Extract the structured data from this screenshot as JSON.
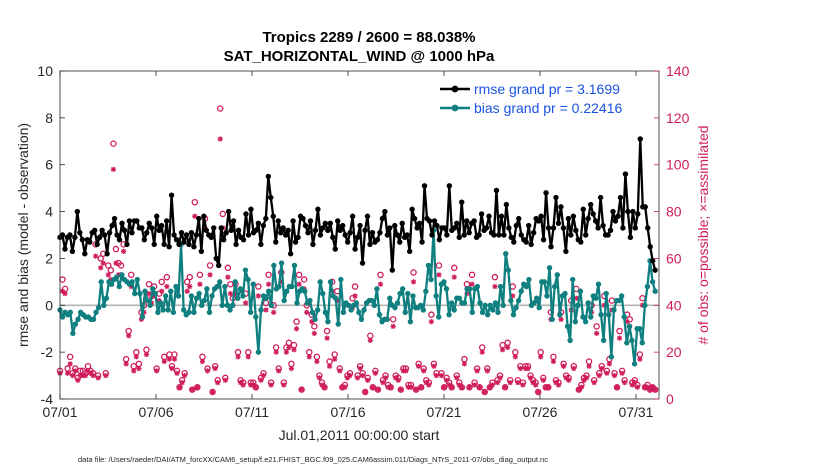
{
  "chart_data": {
    "type": "line",
    "title": "Tropics 2289 / 2600 = 88.038%",
    "subtitle": "SAT_HORIZONTAL_WIND @ 1000 hPa",
    "xlabel": "Jul.01,2011 00:00:00 start",
    "ylabel": "rmse and bias (model - observation)",
    "ylabel_right": "# of obs: o=possible; ×=assimilated",
    "xlim": [
      0,
      31.2
    ],
    "ylim": [
      -4,
      10
    ],
    "ylim_right": [
      0,
      140
    ],
    "x_ticks": [
      0,
      5,
      10,
      15,
      20,
      25,
      30
    ],
    "x_tick_labels": [
      "07/01",
      "07/06",
      "07/11",
      "07/16",
      "07/21",
      "07/26",
      "07/31"
    ],
    "y_ticks": [
      -4,
      -2,
      0,
      2,
      4,
      6,
      8,
      10
    ],
    "y_tick_labels": [
      "-4",
      "-2",
      "0",
      "2",
      "4",
      "6",
      "8",
      "10"
    ],
    "y_ticks_right": [
      0,
      20,
      40,
      60,
      80,
      100,
      120,
      140
    ],
    "y_tick_labels_right": [
      "0",
      "20",
      "40",
      "60",
      "80",
      "100",
      "120",
      "140"
    ],
    "footer": "data file: /Users/raeder/DAI/ATM_forcXX/CAM6_setup/f.e21.FHIST_BGC.f09_025.CAM6assim.011/Diags_NTrS_2011-07/obs_diag_output.nc",
    "colors": {
      "rmse": "#000000",
      "bias": "#0f7f7f",
      "obs": "#d01c5c",
      "zero": "#b3b3b3",
      "legend_text": "#1a52e0",
      "right_axis": "#d01c5c"
    },
    "legend": {
      "placement": "top-right",
      "entries": [
        "rmse grand pr = 3.1699",
        "bias grand pr = 0.22416"
      ]
    },
    "series": [
      {
        "name": "rmse",
        "values": [
          2.9,
          3.0,
          2.4,
          2.9,
          3.0,
          2.3,
          2.9,
          4.0,
          3.1,
          2.8,
          2.2,
          2.8,
          2.7,
          3.1,
          3.2,
          2.6,
          2.9,
          3.2,
          3.0,
          2.2,
          3.1,
          3.4,
          3.7,
          3.0,
          2.8,
          3.5,
          3.2,
          2.6,
          3.6,
          3.1,
          3.6,
          3.6,
          3.3,
          3.3,
          2.8,
          3.1,
          3.5,
          3.3,
          2.6,
          3.8,
          3.2,
          3.4,
          2.6,
          3.6,
          2.5,
          4.7,
          3.0,
          2.8,
          2.6,
          3.1,
          2.7,
          3.0,
          2.6,
          3.1,
          2.5,
          3.0,
          3.7,
          2.3,
          3.8,
          3.2,
          3.0,
          2.9,
          3.3,
          2.0,
          1.7,
          3.3,
          2.8,
          3.1,
          4.0,
          3.2,
          3.6,
          2.6,
          3.2,
          2.9,
          2.8,
          3.9,
          3.0,
          4.1,
          3.1,
          3.2,
          3.5,
          2.6,
          3.4,
          3.7,
          5.5,
          4.6,
          3.8,
          2.7,
          3.6,
          3.1,
          3.3,
          3.0,
          3.2,
          2.2,
          3.6,
          2.7,
          2.9,
          3.8,
          3.7,
          3.4,
          3.1,
          3.6,
          2.6,
          3.2,
          4.1,
          3.0,
          3.3,
          3.5,
          3.2,
          3.5,
          2.9,
          2.4,
          3.6,
          3.2,
          3.4,
          3.0,
          2.7,
          3.1,
          3.8,
          2.4,
          2.9,
          3.4,
          1.8,
          3.2,
          3.8,
          2.6,
          3.1,
          2.7,
          2.8,
          3.1,
          3.7,
          4.0,
          3.0,
          3.3,
          1.5,
          3.4,
          3.0,
          2.7,
          3.5,
          2.9,
          3.0,
          2.3,
          4.1,
          3.7,
          3.3,
          3.5,
          2.7,
          5.1,
          3.7,
          3.6,
          3.0,
          3.6,
          3.4,
          2.8,
          3.3,
          3.3,
          3.0,
          5.1,
          3.2,
          3.3,
          3.5,
          2.9,
          4.4,
          3.0,
          3.6,
          3.1,
          3.5,
          3.6,
          2.9,
          3.0,
          3.9,
          3.2,
          3.3,
          3.8,
          3.1,
          3.0,
          4.9,
          3.0,
          3.8,
          3.0,
          4.3,
          3.3,
          2.9,
          2.7,
          3.4,
          3.7,
          3.0,
          2.8,
          2.7,
          3.4,
          2.6,
          3.1,
          3.7,
          3.6,
          3.8,
          2.8,
          4.8,
          3.3,
          2.5,
          3.3,
          4.6,
          3.5,
          4.2,
          3.3,
          2.3,
          3.7,
          3.0,
          3.8,
          3.2,
          2.8,
          2.7,
          4.1,
          3.0,
          3.7,
          4.3,
          3.9,
          3.6,
          3.3,
          4.6,
          3.4,
          3.0,
          3.0,
          3.2,
          4.0,
          3.6,
          3.8,
          4.6,
          3.3,
          5.6,
          4.0,
          2.9,
          4.0,
          3.3,
          3.9,
          7.1,
          4.2,
          4.2,
          3.3,
          2.5,
          1.9,
          1.5
        ]
      },
      {
        "name": "bias",
        "values": [
          -0.2,
          -0.5,
          -0.3,
          -0.4,
          -0.3,
          -1.2,
          -0.8,
          -0.6,
          -0.3,
          -0.4,
          -0.5,
          -0.5,
          -0.6,
          -0.6,
          -0.3,
          -0.1,
          1.0,
          0.0,
          0.3,
          1.0,
          0.9,
          1.1,
          1.2,
          0.8,
          1.3,
          1.1,
          1.0,
          0.9,
          1.0,
          0.5,
          1.1,
          0.5,
          -0.5,
          0.6,
          0.2,
          0.0,
          0.7,
          0.5,
          -0.3,
          0.1,
          -0.2,
          0.4,
          -0.2,
          0.6,
          -0.3,
          0.8,
          0.4,
          2.6,
          -0.2,
          -0.4,
          -0.3,
          0.4,
          -0.3,
          0.3,
          0.5,
          0.0,
          0.2,
          0.7,
          -0.3,
          0.4,
          0.7,
          0.8,
          1.0,
          0.0,
          0.8,
          0.0,
          -0.2,
          0.0,
          1.0,
          0.3,
          0.7,
          0.4,
          1.5,
          1.1,
          -0.3,
          0.9,
          -0.5,
          -2.0,
          -0.2,
          0.4,
          0.3,
          0.6,
          0.0,
          1.7,
          0.7,
          0.8,
          1.8,
          0.2,
          0.6,
          0.8,
          0.8,
          1.7,
          0.1,
          0.6,
          0.7,
          0.6,
          0.1,
          0.2,
          -0.3,
          -0.6,
          -0.2,
          1.0,
          0.5,
          -0.3,
          -0.7,
          1.0,
          0.4,
          0.3,
          -0.8,
          1.1,
          -0.3,
          0.1,
          0.0,
          -0.2,
          0.0,
          0.1,
          -0.3,
          -0.6,
          -0.2,
          0.1,
          0.2,
          0.2,
          0.0,
          0.7,
          -0.4,
          -0.7,
          -0.6,
          -0.6,
          0.3,
          0.0,
          -0.1,
          0.1,
          0.5,
          0.7,
          -0.3,
          0.5,
          -0.7,
          0.4,
          -0.1,
          -0.1,
          0.0,
          -0.2,
          0.6,
          1.7,
          1.1,
          3.2,
          0.4,
          -0.5,
          0.9,
          1.0,
          0.7,
          -0.4,
          0.1,
          -0.2,
          0.3,
          0.3,
          0.1,
          0.1,
          0.7,
          0.7,
          -0.3,
          0.7,
          0.8,
          0.1,
          -0.3,
          0.0,
          -0.4,
          0.0,
          -0.2,
          0.1,
          -0.3,
          0.8,
          0.0,
          2.2,
          1.5,
          0.2,
          -0.4,
          -0.1,
          0.2,
          0.6,
          0.9,
          0.8,
          1.1,
          0.0,
          0.1,
          0.3,
          -0.1,
          1.0,
          1.0,
          0.4,
          1.6,
          -0.6,
          0.8,
          1.3,
          -0.4,
          0.4,
          0.5,
          -0.9,
          -1.5,
          1.1,
          -0.7,
          0.0,
          0.6,
          -0.5,
          -0.7,
          0.1,
          -0.5,
          0.4,
          0.3,
          0.9,
          -0.4,
          -1.5,
          0.5,
          -0.4,
          -2.2,
          -0.2,
          0.2,
          0.2,
          0.4,
          -0.5,
          -1.6,
          -0.9,
          -1.5,
          -2.5,
          -1.0,
          -1.0,
          -1.6,
          0.0,
          0.8,
          1.9,
          1.0,
          0.6
        ]
      },
      {
        "name": "obs_possible",
        "axis": "right",
        "values": [
          12,
          51,
          47,
          13,
          18,
          11,
          13,
          9,
          12,
          12,
          11,
          14,
          12,
          11,
          66,
          10,
          60,
          62,
          11,
          57,
          55,
          109,
          64,
          58,
          57,
          66,
          17,
          29,
          53,
          14,
          20,
          15,
          37,
          40,
          21,
          49,
          44,
          48,
          13,
          45,
          50,
          18,
          52,
          19,
          14,
          19,
          12,
          5,
          8,
          11,
          50,
          52,
          4,
          84,
          5,
          53,
          18,
          77,
          13,
          57,
          3,
          14,
          8,
          124,
          79,
          9,
          56,
          49,
          43,
          49,
          20,
          8,
          7,
          45,
          20,
          7,
          7,
          5,
          48,
          9,
          11,
          41,
          53,
          7,
          40,
          22,
          13,
          54,
          7,
          22,
          24,
          15,
          23,
          33,
          53,
          4,
          51,
          40,
          20,
          36,
          31,
          18,
          10,
          7,
          5,
          29,
          16,
          50,
          19,
          46,
          13,
          5,
          6,
          10,
          11,
          43,
          48,
          10,
          14,
          11,
          3,
          9,
          27,
          5,
          12,
          4,
          53,
          8,
          10,
          6,
          5,
          34,
          10,
          9,
          4,
          13,
          13,
          6,
          6,
          54,
          4,
          15,
          5,
          13,
          8,
          7,
          36,
          15,
          11,
          57,
          11,
          5,
          9,
          7,
          5,
          56,
          10,
          7,
          5,
          17,
          49,
          5,
          53,
          7,
          13,
          5,
          22,
          3,
          13,
          5,
          7,
          52,
          8,
          10,
          23,
          5,
          24,
          8,
          48,
          20,
          8,
          14,
          7,
          14,
          14,
          10,
          8,
          7,
          3,
          20,
          9,
          5,
          5,
          37,
          18,
          8,
          7,
          37,
          15,
          10,
          9,
          42,
          14,
          47,
          4,
          6,
          9,
          10,
          16,
          40,
          8,
          31,
          11,
          14,
          44,
          12,
          17,
          42,
          11,
          5,
          29,
          12,
          8,
          36,
          34,
          7,
          8,
          6,
          19,
          43,
          5,
          6,
          4,
          5,
          4
        ]
      },
      {
        "name": "obs_assimilated",
        "axis": "right",
        "values": [
          11,
          46,
          45,
          11,
          15,
          10,
          12,
          8,
          10,
          10,
          10,
          12,
          11,
          10,
          61,
          9,
          56,
          58,
          10,
          53,
          51,
          98,
          58,
          53,
          53,
          63,
          15,
          27,
          48,
          12,
          18,
          13,
          34,
          37,
          19,
          45,
          41,
          44,
          12,
          42,
          46,
          16,
          48,
          17,
          13,
          17,
          11,
          5,
          7,
          10,
          46,
          48,
          4,
          78,
          5,
          49,
          16,
          73,
          12,
          53,
          3,
          13,
          7,
          111,
          73,
          8,
          52,
          45,
          40,
          45,
          18,
          7,
          6,
          41,
          18,
          6,
          6,
          5,
          44,
          8,
          10,
          38,
          49,
          6,
          37,
          20,
          12,
          50,
          6,
          20,
          22,
          13,
          21,
          30,
          49,
          4,
          47,
          37,
          18,
          33,
          28,
          16,
          9,
          6,
          5,
          26,
          14,
          46,
          17,
          42,
          12,
          5,
          5,
          9,
          10,
          39,
          44,
          9,
          13,
          10,
          3,
          8,
          25,
          5,
          11,
          4,
          49,
          7,
          9,
          5,
          5,
          31,
          9,
          8,
          4,
          12,
          12,
          5,
          5,
          50,
          4,
          14,
          5,
          12,
          7,
          6,
          33,
          14,
          10,
          53,
          10,
          5,
          8,
          6,
          5,
          52,
          9,
          6,
          5,
          15,
          45,
          5,
          49,
          6,
          12,
          5,
          20,
          3,
          12,
          5,
          6,
          48,
          7,
          9,
          21,
          5,
          22,
          7,
          44,
          18,
          7,
          13,
          6,
          13,
          13,
          9,
          7,
          6,
          3,
          18,
          8,
          5,
          5,
          34,
          16,
          7,
          6,
          34,
          14,
          9,
          8,
          38,
          13,
          43,
          4,
          5,
          8,
          9,
          14,
          37,
          7,
          28,
          10,
          13,
          40,
          11,
          15,
          38,
          10,
          5,
          26,
          11,
          7,
          33,
          31,
          6,
          7,
          5,
          17,
          40,
          5,
          5,
          4,
          5,
          4
        ]
      }
    ]
  }
}
